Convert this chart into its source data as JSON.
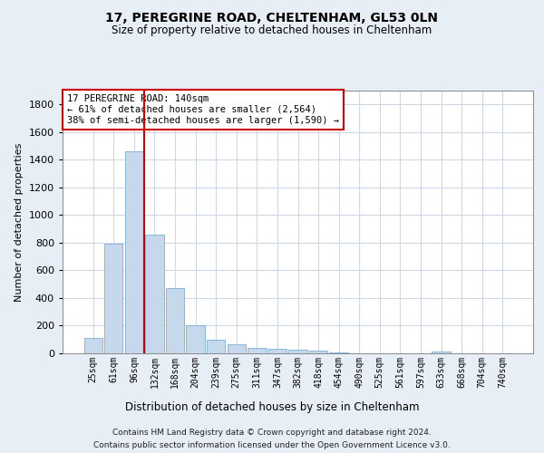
{
  "title1": "17, PEREGRINE ROAD, CHELTENHAM, GL53 0LN",
  "title2": "Size of property relative to detached houses in Cheltenham",
  "xlabel": "Distribution of detached houses by size in Cheltenham",
  "ylabel": "Number of detached properties",
  "categories": [
    "25sqm",
    "61sqm",
    "96sqm",
    "132sqm",
    "168sqm",
    "204sqm",
    "239sqm",
    "275sqm",
    "311sqm",
    "347sqm",
    "382sqm",
    "418sqm",
    "454sqm",
    "490sqm",
    "525sqm",
    "561sqm",
    "597sqm",
    "633sqm",
    "668sqm",
    "704sqm",
    "740sqm"
  ],
  "values": [
    110,
    790,
    1460,
    860,
    470,
    200,
    100,
    65,
    42,
    30,
    25,
    20,
    5,
    2,
    2,
    2,
    2,
    15,
    2,
    2,
    2
  ],
  "bar_color": "#c5d8ec",
  "bar_edge_color": "#7aafd4",
  "property_bar_index": 3,
  "vline_color": "#cc0000",
  "annotation_text": "17 PEREGRINE ROAD: 140sqm\n← 61% of detached houses are smaller (2,564)\n38% of semi-detached houses are larger (1,590) →",
  "footer1": "Contains HM Land Registry data © Crown copyright and database right 2024.",
  "footer2": "Contains public sector information licensed under the Open Government Licence v3.0.",
  "ylim": [
    0,
    1900
  ],
  "yticks": [
    0,
    200,
    400,
    600,
    800,
    1000,
    1200,
    1400,
    1600,
    1800
  ],
  "bg_color": "#e8eef5",
  "plot_bg_color": "#ffffff",
  "grid_color": "#d0d8e8"
}
